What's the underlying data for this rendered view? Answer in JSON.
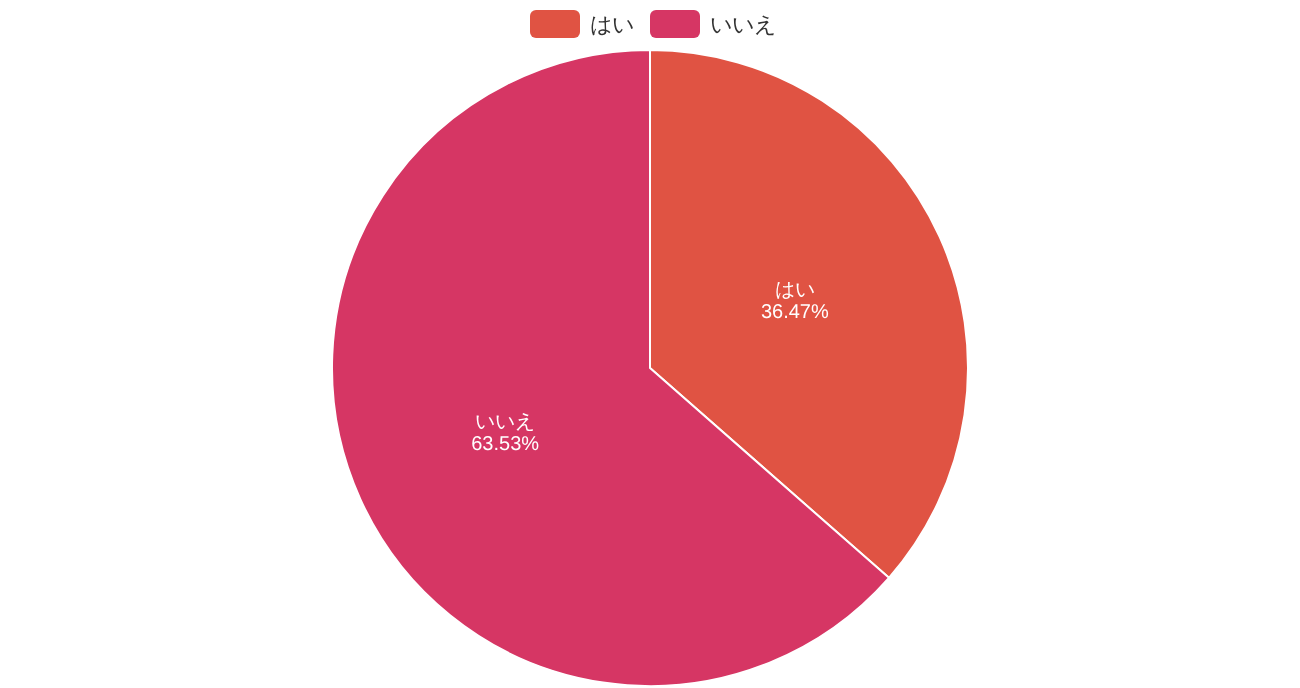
{
  "chart_data": {
    "type": "pie",
    "categories": [
      "はい",
      "いいえ"
    ],
    "values": [
      36.47,
      63.53
    ],
    "colors": [
      "#e05343",
      "#d63664"
    ],
    "value_labels": [
      "36.47%",
      "63.53%"
    ],
    "legend": "top"
  }
}
